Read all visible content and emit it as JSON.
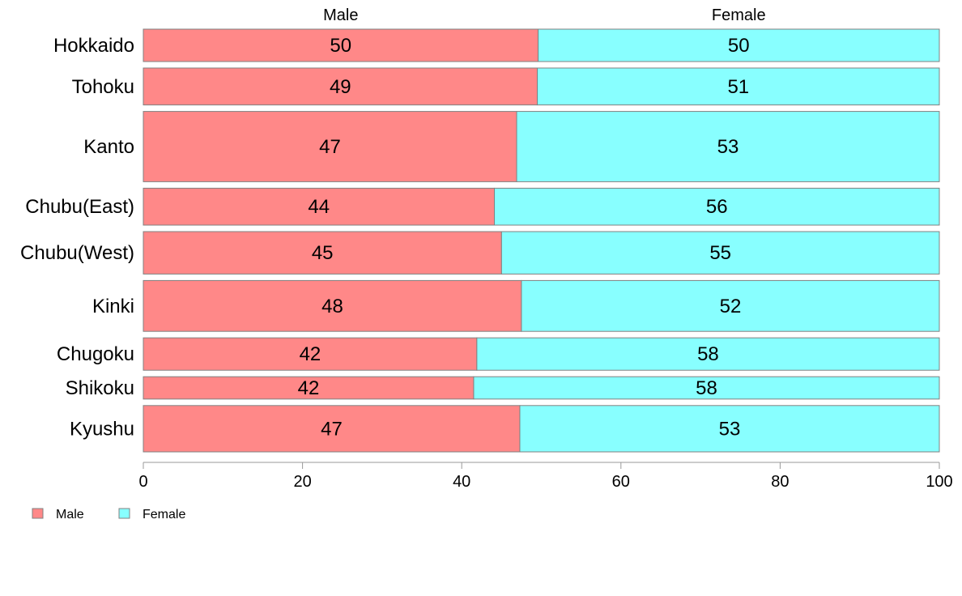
{
  "chart_data": {
    "type": "bar",
    "orientation": "horizontal",
    "stacked": true,
    "categories": [
      "Hokkaido",
      "Tohoku",
      "Kanto",
      "Chubu(East)",
      "Chubu(West)",
      "Kinki",
      "Chugoku",
      "Shikoku",
      "Kyushu"
    ],
    "category_weights": [
      1.0,
      1.14,
      2.17,
      1.14,
      1.31,
      1.57,
      1.0,
      0.69,
      1.43
    ],
    "series": [
      {
        "name": "Male",
        "color": "#ff8888",
        "values": [
          49.6,
          49.5,
          46.9,
          44.1,
          45.0,
          47.5,
          41.9,
          41.5,
          47.3
        ],
        "labels": [
          "50",
          "49",
          "47",
          "44",
          "45",
          "48",
          "42",
          "42",
          "47"
        ]
      },
      {
        "name": "Female",
        "color": "#88ffff",
        "values": [
          50.4,
          50.5,
          53.1,
          55.9,
          55.0,
          52.5,
          58.1,
          58.5,
          52.7
        ],
        "labels": [
          "50",
          "51",
          "53",
          "56",
          "55",
          "52",
          "58",
          "58",
          "53"
        ]
      }
    ],
    "column_headers": [
      "Male",
      "Female"
    ],
    "xlim": [
      0,
      100
    ],
    "xticks": [
      0,
      20,
      40,
      60,
      80,
      100
    ],
    "grid": false,
    "legend_placement": "bottom-left"
  }
}
